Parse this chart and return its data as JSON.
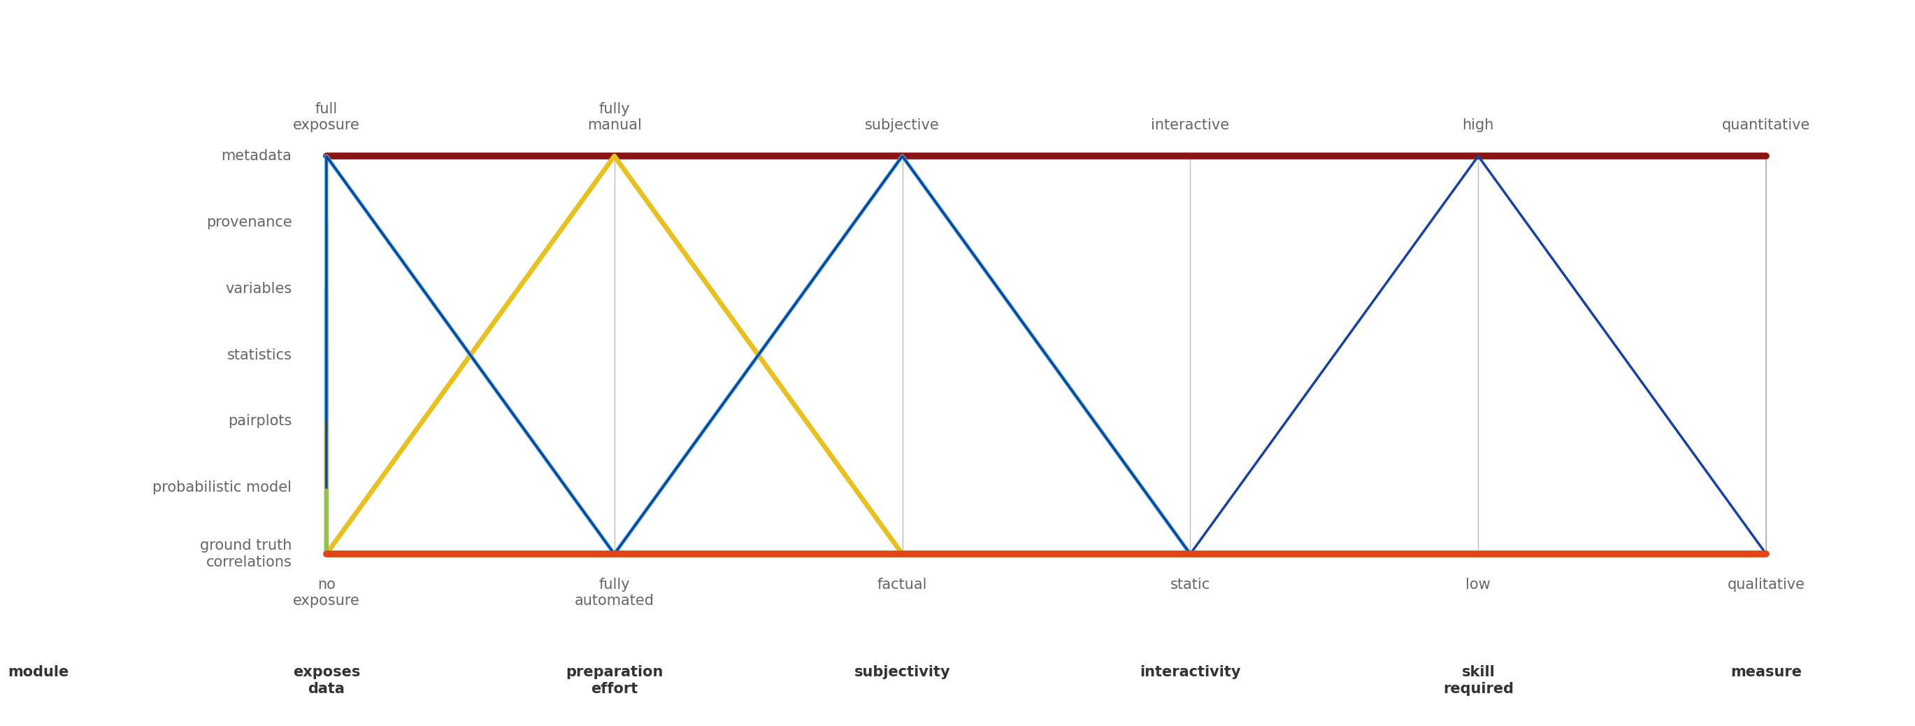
{
  "top_labels": [
    "full\nexposure",
    "fully\nmanual",
    "subjective",
    "interactive",
    "high",
    "quantitative"
  ],
  "bottom_labels": [
    "no\nexposure",
    "fully\nautomated",
    "factual",
    "static",
    "low",
    "qualitative"
  ],
  "axis_titles": [
    "module",
    "exposes\ndata",
    "preparation\neffort",
    "subjectivity",
    "interactivity",
    "skill\nrequired",
    "measure"
  ],
  "row_labels": [
    "metadata",
    "provenance",
    "variables",
    "statistics",
    "pairplots",
    "probabilistic model",
    "ground truth\ncorrelations"
  ],
  "bg_color": "#ffffff",
  "axis_color": "#bbbbbb",
  "text_color": "#666666",
  "title_color": "#333333",
  "line_paths": [
    {
      "name": "metadata",
      "color": "#8B1515",
      "linewidth": 7,
      "row": 0,
      "values": [
        1,
        1,
        1,
        1,
        1,
        1
      ]
    },
    {
      "name": "provenance",
      "color": "#F08080",
      "linewidth": 4,
      "row": 1,
      "values": [
        0,
        0,
        0,
        0,
        0,
        0
      ]
    },
    {
      "name": "variables",
      "color": "#E8C020",
      "linewidth": 5,
      "row": 2,
      "values": [
        0,
        1,
        0,
        0,
        0,
        0
      ]
    },
    {
      "name": "statistics",
      "color": "#90C055",
      "linewidth": 4,
      "row": 3,
      "values": [
        0,
        0,
        0,
        0,
        0,
        0
      ]
    },
    {
      "name": "pairplots",
      "color": "#50C8D8",
      "linewidth": 4,
      "row": 4,
      "values": [
        1,
        0,
        1,
        0,
        0,
        0
      ]
    },
    {
      "name": "probabilistic model",
      "color": "#1840A0",
      "linewidth": 2.5,
      "row": 5,
      "values": [
        1,
        0,
        1,
        0,
        1,
        0
      ]
    },
    {
      "name": "ground truth correlations",
      "color": "#E04515",
      "linewidth": 7,
      "row": 6,
      "values": [
        0,
        0,
        0,
        0,
        0,
        0
      ]
    }
  ]
}
